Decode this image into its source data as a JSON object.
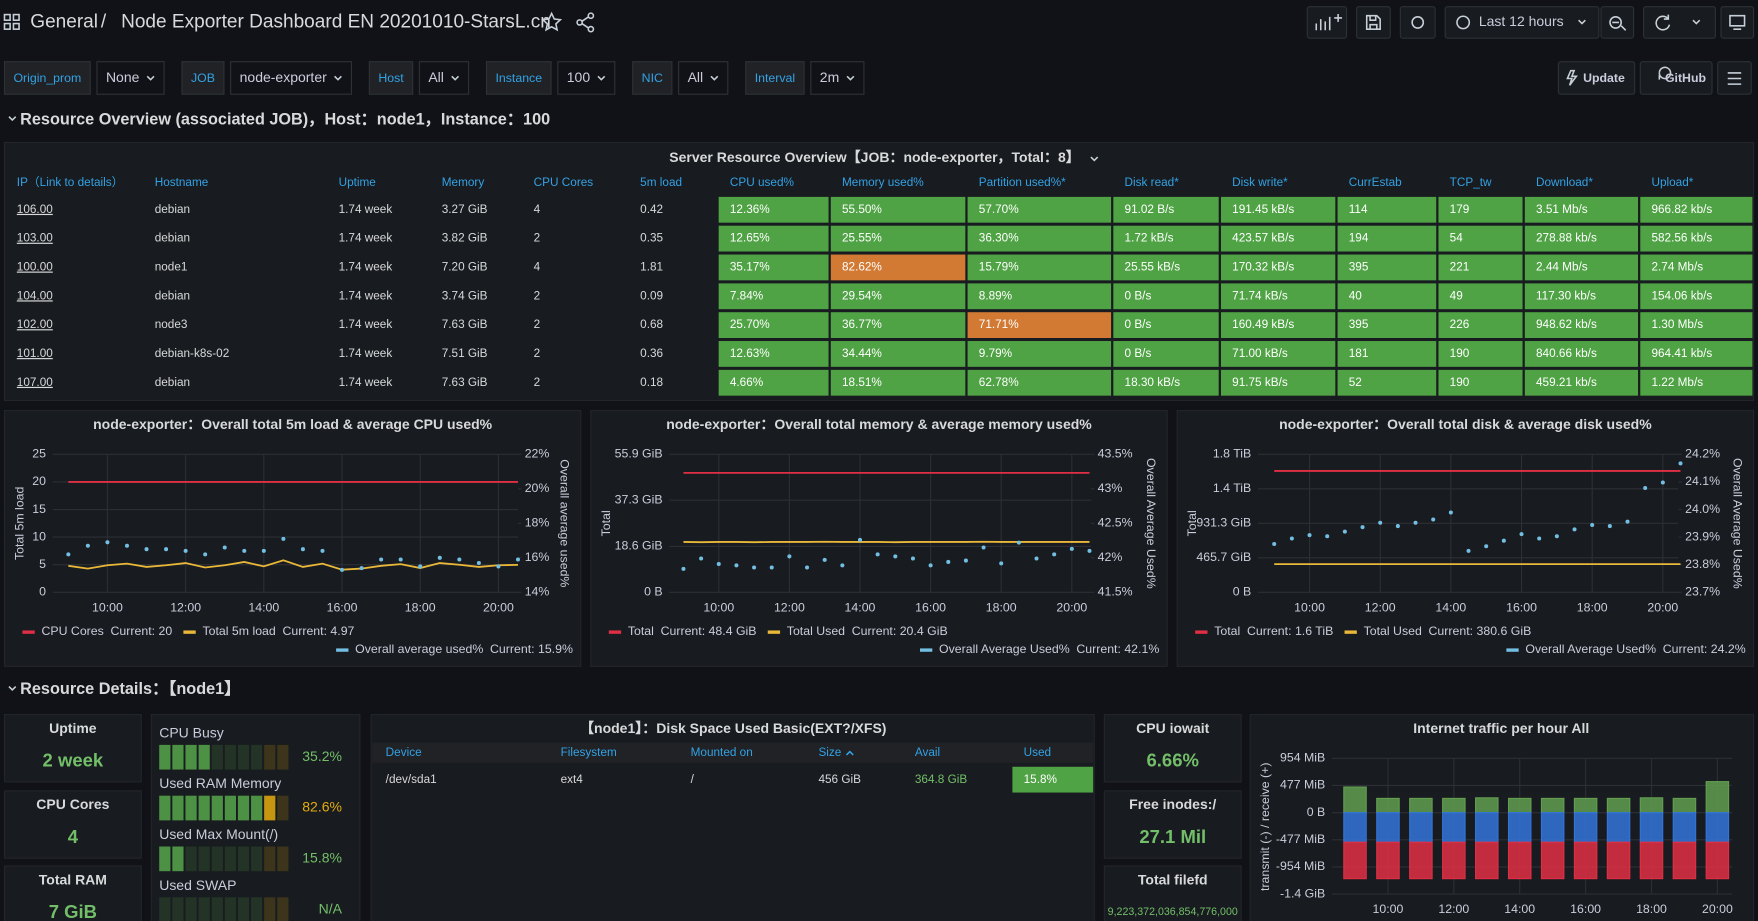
{
  "header": {
    "root": "General",
    "separator": "/",
    "title": "Node Exporter Dashboard EN 20201010-StarsL.cn",
    "time_range": "Last 12 hours"
  },
  "variables": [
    {
      "label": "Origin_prom",
      "value": "None"
    },
    {
      "label": "JOB",
      "value": "node-exporter"
    },
    {
      "label": "Host",
      "value": "All"
    },
    {
      "label": "Instance",
      "value": "100"
    },
    {
      "label": "NIC",
      "value": "All"
    },
    {
      "label": "Interval",
      "value": "2m"
    }
  ],
  "links": [
    "Update",
    "GitHub"
  ],
  "sections": [
    "Resource Overview (associated JOB)，Host：node1，Instance：100",
    "Resource Details：【node1】"
  ],
  "overview_table": {
    "title": "Server Resource Overview【JOB：node-exporter，Total：8】",
    "columns": [
      "IP（Link to details）",
      "Hostname",
      "Uptime",
      "Memory",
      "CPU Cores",
      "5m load",
      "CPU used%",
      "Memory used%",
      "Partition used%*",
      "Disk read*",
      "Disk write*",
      "CurrEstab",
      "TCP_tw",
      "Download*",
      "Upload*"
    ],
    "rows": [
      [
        "106.00",
        "debian",
        "1.74 week",
        "3.27 GiB",
        "4",
        "0.42",
        "12.36%",
        "55.50%",
        "57.70%",
        "91.02 B/s",
        "191.45 kB/s",
        "114",
        "179",
        "3.51 Mb/s",
        "966.82 kb/s"
      ],
      [
        "103.00",
        "debian",
        "1.74 week",
        "3.82 GiB",
        "2",
        "0.35",
        "12.65%",
        "25.55%",
        "36.30%",
        "1.72 kB/s",
        "423.57 kB/s",
        "194",
        "54",
        "278.88 kb/s",
        "582.56 kb/s"
      ],
      [
        "100.00",
        "node1",
        "1.74 week",
        "7.20 GiB",
        "4",
        "1.81",
        "35.17%",
        "82.62%",
        "15.79%",
        "25.55 kB/s",
        "170.32 kB/s",
        "395",
        "221",
        "2.44 Mb/s",
        "2.74 Mb/s"
      ],
      [
        "104.00",
        "debian",
        "1.74 week",
        "3.74 GiB",
        "2",
        "0.09",
        "7.84%",
        "29.54%",
        "8.89%",
        "0 B/s",
        "71.74 kB/s",
        "40",
        "49",
        "117.30 kb/s",
        "154.06 kb/s"
      ],
      [
        "102.00",
        "node3",
        "1.74 week",
        "7.63 GiB",
        "2",
        "0.68",
        "25.70%",
        "36.77%",
        "71.71%",
        "0 B/s",
        "160.49 kB/s",
        "395",
        "226",
        "948.62 kb/s",
        "1.30 Mb/s"
      ],
      [
        "101.00",
        "debian-k8s-02",
        "1.74 week",
        "7.51 GiB",
        "2",
        "0.36",
        "12.63%",
        "34.44%",
        "9.79%",
        "0 B/s",
        "71.00 kB/s",
        "181",
        "190",
        "840.66 kb/s",
        "964.41 kb/s"
      ],
      [
        "107.00",
        "debian",
        "1.74 week",
        "7.63 GiB",
        "2",
        "0.18",
        "4.66%",
        "18.51%",
        "62.78%",
        "18.30 kB/s",
        "91.75 kB/s",
        "52",
        "190",
        "459.21 kb/s",
        "1.22 Mb/s"
      ]
    ],
    "colored_from": 6,
    "percent_columns": [
      6,
      7,
      8
    ],
    "warn_threshold": 70,
    "ok_color": "#4fa344",
    "warn_color": "#d27a33"
  },
  "charts": [
    {
      "type": "line",
      "title": "node-exporter：Overall total 5m load & average CPU used%",
      "y_label": "Total 5m load",
      "y2_label": "Overall average used%",
      "xlim": [
        8.6,
        20.5
      ],
      "xticks": [
        {
          "value": 10,
          "label": "10:00"
        },
        {
          "value": 12,
          "label": "12:00"
        },
        {
          "value": 14,
          "label": "14:00"
        },
        {
          "value": 16,
          "label": "16:00"
        },
        {
          "value": 18,
          "label": "18:00"
        },
        {
          "value": 20,
          "label": "20:00"
        }
      ],
      "ylim": [
        0,
        25
      ],
      "yticks": [
        0,
        5,
        10,
        15,
        20,
        25
      ],
      "y2lim": [
        14,
        22
      ],
      "y2ticks": [
        {
          "value": 14,
          "label": "14%"
        },
        {
          "value": 16,
          "label": "16%"
        },
        {
          "value": 18,
          "label": "18%"
        },
        {
          "value": 20,
          "label": "20%"
        },
        {
          "value": 22,
          "label": "22%"
        }
      ],
      "x": [
        9,
        9.5,
        10,
        10.5,
        11,
        11.5,
        12,
        12.5,
        13,
        13.5,
        14,
        14.5,
        15,
        15.5,
        16,
        16.5,
        17,
        17.5,
        18,
        18.5,
        19,
        19.5,
        20,
        20.5
      ],
      "series": [
        {
          "name": "CPU Cores",
          "current": "Current: 20",
          "color": "#e02f44",
          "style": "line",
          "values": [
            20,
            20,
            20,
            20,
            20,
            20,
            20,
            20,
            20,
            20,
            20,
            20,
            20,
            20,
            20,
            20,
            20,
            20,
            20,
            20,
            20,
            20,
            20,
            20
          ]
        },
        {
          "name": "Total 5m load",
          "current": "Current: 4.97",
          "color": "#eab839",
          "style": "line",
          "values": [
            4.8,
            4.3,
            4.9,
            5.2,
            4.6,
            4.9,
            5.3,
            4.5,
            4.9,
            5.5,
            4.7,
            5.8,
            4.6,
            5.2,
            4.1,
            4.3,
            4.8,
            5.1,
            4.4,
            5.3,
            5.0,
            4.6,
            4.9,
            4.97
          ]
        },
        {
          "name": "Overall average used%",
          "current": "Current: 15.9%",
          "color": "#73bfe3",
          "style": "points",
          "axis": "y2",
          "values": [
            16.2,
            16.7,
            16.9,
            16.7,
            16.5,
            16.5,
            16.4,
            16.2,
            16.6,
            16.4,
            16.4,
            17.1,
            16.5,
            16.4,
            15.3,
            15.4,
            15.9,
            15.9,
            15.5,
            16.0,
            15.9,
            15.7,
            15.5,
            15.9
          ]
        }
      ]
    },
    {
      "type": "line",
      "title": "node-exporter：Overall total memory & average memory used%",
      "y_label": "Total",
      "y2_label": "Overall Average Used%",
      "xlim": [
        8.6,
        20.54
      ],
      "xticks": [
        {
          "value": 10,
          "label": "10:00"
        },
        {
          "value": 12,
          "label": "12:00"
        },
        {
          "value": 14,
          "label": "14:00"
        },
        {
          "value": 16,
          "label": "16:00"
        },
        {
          "value": 18,
          "label": "18:00"
        },
        {
          "value": 20,
          "label": "20:00"
        }
      ],
      "ylim": [
        0,
        55.9
      ],
      "yticks": [
        {
          "value": 0,
          "label": "0 B"
        },
        {
          "value": 18.6,
          "label": "18.6 GiB"
        },
        {
          "value": 37.3,
          "label": "37.3 GiB"
        },
        {
          "value": 55.9,
          "label": "55.9 GiB"
        }
      ],
      "y2lim": [
        41.5,
        43.5
      ],
      "y2ticks": [
        {
          "value": 41.5,
          "label": "41.5%"
        },
        {
          "value": 42,
          "label": "42%"
        },
        {
          "value": 42.5,
          "label": "42.5%"
        },
        {
          "value": 43,
          "label": "43%"
        },
        {
          "value": 43.5,
          "label": "43.5%"
        }
      ],
      "x": [
        9,
        9.5,
        10,
        10.5,
        11,
        11.5,
        12,
        12.5,
        13,
        13.5,
        14,
        14.5,
        15,
        15.5,
        16,
        16.5,
        17,
        17.5,
        18,
        18.5,
        19,
        19.5,
        20,
        20.5
      ],
      "series": [
        {
          "name": "Total",
          "current": "Current: 48.4 GiB",
          "color": "#e02f44",
          "style": "line",
          "values": [
            48.4,
            48.4,
            48.4,
            48.4,
            48.4,
            48.4,
            48.4,
            48.4,
            48.4,
            48.4,
            48.4,
            48.4,
            48.4,
            48.4,
            48.4,
            48.4,
            48.4,
            48.4,
            48.4,
            48.4,
            48.4,
            48.4,
            48.4,
            48.4
          ]
        },
        {
          "name": "Total Used",
          "current": "Current: 20.4 GiB",
          "color": "#eab839",
          "style": "line",
          "values": [
            20.4,
            20.3,
            20.4,
            20.4,
            20.3,
            20.4,
            20.4,
            20.4,
            20.5,
            20.4,
            20.4,
            20.4,
            20.3,
            20.4,
            20.4,
            20.4,
            20.4,
            20.5,
            20.4,
            20.4,
            20.4,
            20.4,
            20.4,
            20.4
          ]
        },
        {
          "name": "Overall Average Used%",
          "current": "Current: 42.1%",
          "color": "#73bfe3",
          "style": "points",
          "axis": "y2",
          "values": [
            41.84,
            41.99,
            41.91,
            41.89,
            41.86,
            41.86,
            42.02,
            41.86,
            41.97,
            41.89,
            42.26,
            42.05,
            42.02,
            41.99,
            41.89,
            41.94,
            41.96,
            42.15,
            41.92,
            42.22,
            41.99,
            42.05,
            42.13,
            42.1
          ]
        }
      ]
    },
    {
      "type": "line",
      "title": "node-exporter：Overall total disk & average disk used%",
      "y_label": "Total",
      "y2_label": "Overall Average Used%",
      "xlim": [
        8.54,
        20.44
      ],
      "xticks": [
        {
          "value": 10,
          "label": "10:00"
        },
        {
          "value": 12,
          "label": "12:00"
        },
        {
          "value": 14,
          "label": "14:00"
        },
        {
          "value": 16,
          "label": "16:00"
        },
        {
          "value": 18,
          "label": "18:00"
        },
        {
          "value": 20,
          "label": "20:00"
        }
      ],
      "ylim": [
        0,
        1862.6
      ],
      "yticks": [
        {
          "value": 0,
          "label": "0 B"
        },
        {
          "value": 465.7,
          "label": "465.7 GiB"
        },
        {
          "value": 931.3,
          "label": "931.3 GiB"
        },
        {
          "value": 1397,
          "label": "1.4 TiB"
        },
        {
          "value": 1862.6,
          "label": "1.8 TiB"
        }
      ],
      "y2lim": [
        23.7,
        24.2
      ],
      "y2ticks": [
        {
          "value": 23.7,
          "label": "23.7%"
        },
        {
          "value": 23.8,
          "label": "23.8%"
        },
        {
          "value": 23.9,
          "label": "23.9%"
        },
        {
          "value": 24,
          "label": "24.0%"
        },
        {
          "value": 24.1,
          "label": "24.1%"
        },
        {
          "value": 24.2,
          "label": "24.2%"
        }
      ],
      "x": [
        9,
        9.5,
        10,
        10.5,
        11,
        11.5,
        12,
        12.5,
        13,
        13.5,
        14,
        14.5,
        15,
        15.5,
        16,
        16.5,
        17,
        17.5,
        18,
        18.5,
        19,
        19.5,
        20,
        20.5
      ],
      "series": [
        {
          "name": "Total",
          "current": "Current: 1.6 TiB",
          "color": "#e02f44",
          "style": "line",
          "values": [
            1638.4,
            1638.4,
            1638.4,
            1638.4,
            1638.4,
            1638.4,
            1638.4,
            1638.4,
            1638.4,
            1638.4,
            1638.4,
            1638.4,
            1638.4,
            1638.4,
            1638.4,
            1638.4,
            1638.4,
            1638.4,
            1638.4,
            1638.4,
            1638.4,
            1638.4,
            1638.4,
            1638.4
          ]
        },
        {
          "name": "Total Used",
          "current": "Current: 380.6 GiB",
          "color": "#eab839",
          "style": "line",
          "values": [
            380.6,
            380.6,
            380.6,
            380.6,
            380.6,
            380.6,
            380.6,
            380.6,
            380.6,
            380.6,
            380.6,
            380.6,
            380.6,
            380.6,
            380.6,
            380.6,
            380.6,
            380.6,
            380.6,
            380.6,
            380.6,
            380.6,
            380.6,
            380.6
          ]
        },
        {
          "name": "Overall Average Used%",
          "current": "Current: 24.2%",
          "color": "#73bfe3",
          "style": "points",
          "axis": "y2",
          "values": [
            23.875,
            23.895,
            23.907,
            23.903,
            23.92,
            23.936,
            23.952,
            23.94,
            23.952,
            23.964,
            23.989,
            23.85,
            23.867,
            23.887,
            23.911,
            23.895,
            23.903,
            23.928,
            23.944,
            23.94,
            23.956,
            24.078,
            24.098,
            24.167
          ]
        }
      ]
    }
  ],
  "stats": [
    {
      "label": "Uptime",
      "value": "2 week"
    },
    {
      "label": "CPU Cores",
      "value": "4"
    },
    {
      "label": "Total RAM",
      "value": "7 GiB"
    },
    {
      "label": "CPU iowait",
      "value": "6.66%"
    },
    {
      "label": "Free inodes:/",
      "value": "27.1 Mil"
    },
    {
      "label": "Total filefd",
      "value": "9,223,372,036,854,776,000"
    }
  ],
  "gauges": {
    "max": 100,
    "ok_color": "#56a64b",
    "warn_at": 80,
    "warn_color": "#e5ac0e",
    "items": [
      {
        "label": "CPU Busy",
        "value": 35.2,
        "value_label": "35.2%"
      },
      {
        "label": "Used RAM Memory",
        "value": 82.6,
        "value_label": "82.6%"
      },
      {
        "label": "Used Max Mount(/)",
        "value": 15.8,
        "value_label": "15.8%"
      },
      {
        "label": "Used SWAP",
        "value": null,
        "value_label": "N/A"
      }
    ]
  },
  "disk_table": {
    "title": "【node1】：Disk Space Used Basic(EXT?/XFS)",
    "columns": [
      "Device",
      "Filesystem",
      "Mounted on",
      "Size",
      "Avail",
      "Used"
    ],
    "rows": [
      [
        "/dev/sda1",
        "ext4",
        "/",
        "456 GiB",
        "364.8 GiB",
        "15.8%"
      ]
    ]
  },
  "traffic": {
    "type": "bar",
    "title": "Internet traffic per hour All",
    "y_label": "transmit (-) / receive (+)",
    "ylim": [
      -1431,
      954
    ],
    "yticks": [
      {
        "value": -1431,
        "label": "-1.4 GiB"
      },
      {
        "value": -954,
        "label": "-954 MiB"
      },
      {
        "value": -477,
        "label": "-477 MiB"
      },
      {
        "value": 0,
        "label": "0 B"
      },
      {
        "value": 477,
        "label": "477 MiB"
      },
      {
        "value": 954,
        "label": "954 MiB"
      }
    ],
    "xlim": [
      8.3,
      20.45
    ],
    "xticks": [
      {
        "value": 10,
        "label": "10:00"
      },
      {
        "value": 12,
        "label": "12:00"
      },
      {
        "value": 14,
        "label": "14:00"
      },
      {
        "value": 16,
        "label": "16:00"
      },
      {
        "value": 18,
        "label": "18:00"
      },
      {
        "value": 20,
        "label": "20:00"
      }
    ],
    "x": [
      9,
      10,
      11,
      12,
      13,
      14,
      15,
      16,
      17,
      18,
      19,
      20
    ],
    "series": [
      {
        "color": "#629e51",
        "values": [
          450,
          250,
          250,
          250,
          260,
          250,
          250,
          250,
          250,
          260,
          250,
          545
        ]
      },
      {
        "color": "#3274d9",
        "values": [
          -520,
          -520,
          -520,
          -520,
          -520,
          -520,
          -520,
          -520,
          -520,
          -520,
          -520,
          -520
        ]
      },
      {
        "color": "#e02f44",
        "values": [
          -640,
          -640,
          -640,
          -640,
          -640,
          -640,
          -640,
          -640,
          -640,
          -640,
          -640,
          -640
        ]
      }
    ]
  }
}
